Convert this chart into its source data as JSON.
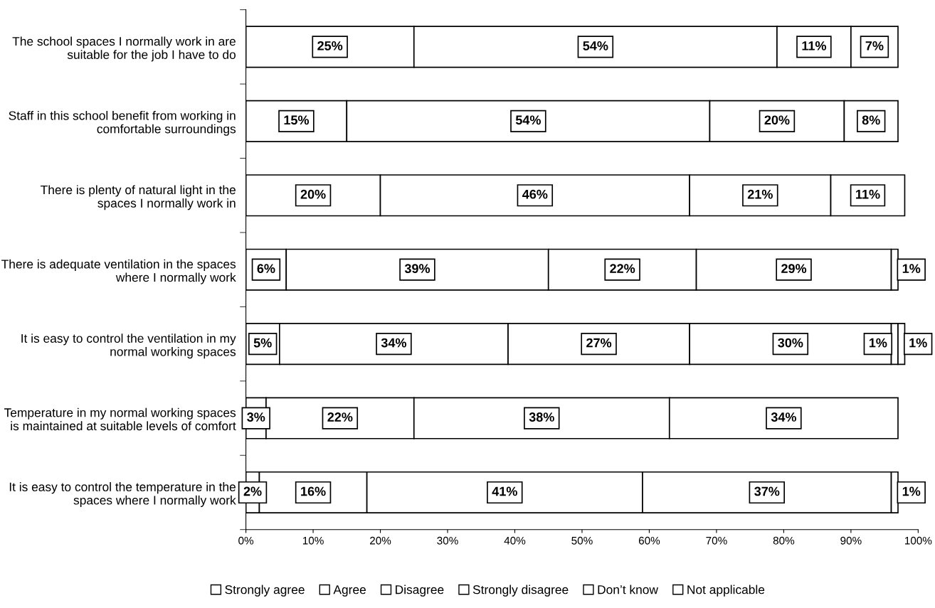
{
  "chart_data": {
    "type": "bar",
    "orientation": "horizontal",
    "stacked": true,
    "categories": [
      "The school spaces I normally work in are suitable for the job I have to do",
      "Staff in this school benefit from working in comfortable surroundings",
      "There is plenty of natural light in the spaces I normally work in",
      "There is adequate ventilation in the spaces where I normally work",
      "It is easy to control the ventilation in my normal working spaces",
      "Temperature in my normal working spaces is maintained at suitable levels of comfort",
      "It is easy to control the temperature in the spaces where I normally work"
    ],
    "series": [
      {
        "name": "Strongly agree",
        "color": "#ffffff",
        "values": [
          25,
          15,
          20,
          6,
          5,
          3,
          2
        ],
        "value_labels": [
          "25%",
          "15%",
          "20%",
          "6%",
          "5%",
          "3%",
          "2%"
        ]
      },
      {
        "name": "Agree",
        "color": "#ffffff",
        "values": [
          54,
          54,
          46,
          39,
          34,
          22,
          16
        ],
        "value_labels": [
          "54%",
          "54%",
          "46%",
          "39%",
          "34%",
          "22%",
          "16%"
        ]
      },
      {
        "name": "Disagree",
        "color": "#ffffff",
        "values": [
          11,
          20,
          21,
          22,
          27,
          38,
          41
        ],
        "value_labels": [
          "11%",
          "20%",
          "21%",
          "22%",
          "27%",
          "38%",
          "41%"
        ]
      },
      {
        "name": "Strongly disagree",
        "color": "#ffffff",
        "values": [
          7,
          8,
          11,
          29,
          30,
          34,
          37
        ],
        "value_labels": [
          "7%",
          "8%",
          "11%",
          "29%",
          "30%",
          "34%",
          "37%"
        ]
      },
      {
        "name": "Don’t know",
        "color": "#ffffff",
        "values": [
          null,
          null,
          null,
          1,
          1,
          null,
          1
        ],
        "value_labels": [
          null,
          null,
          null,
          "1%",
          "1%",
          null,
          "1%"
        ]
      },
      {
        "name": "Not applicable",
        "color": "#ffffff",
        "values": [
          null,
          null,
          null,
          null,
          1,
          null,
          null
        ],
        "value_labels": [
          null,
          null,
          null,
          null,
          "1%",
          null,
          null
        ]
      }
    ],
    "xlim": [
      0,
      100
    ],
    "xticks": [
      {
        "value": 0,
        "label": "0%"
      },
      {
        "value": 10,
        "label": "10%"
      },
      {
        "value": 20,
        "label": "20%"
      },
      {
        "value": 30,
        "label": "30%"
      },
      {
        "value": 40,
        "label": "40%"
      },
      {
        "value": 50,
        "label": "50%"
      },
      {
        "value": 60,
        "label": "60%"
      },
      {
        "value": 70,
        "label": "70%"
      },
      {
        "value": 80,
        "label": "80%"
      },
      {
        "value": 90,
        "label": "90%"
      },
      {
        "value": 100,
        "label": "100%"
      }
    ],
    "grid": false,
    "legend": "bottom"
  }
}
